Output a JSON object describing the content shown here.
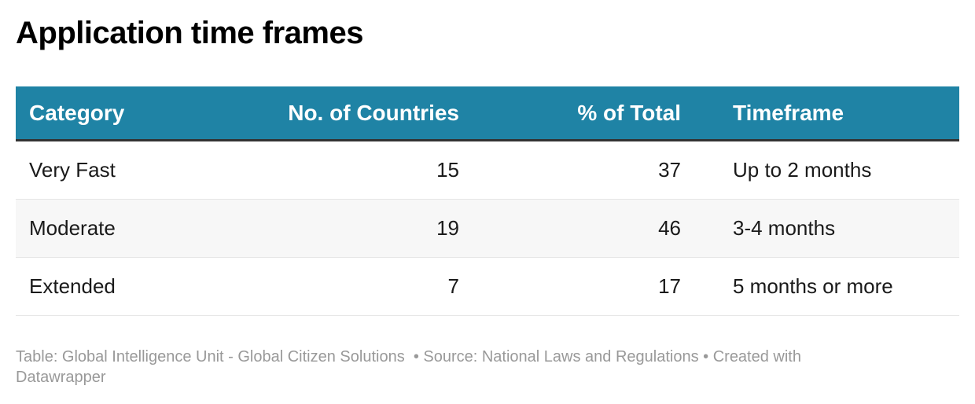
{
  "header": {
    "title": "Application time frames"
  },
  "table": {
    "columns": [
      "Category",
      "No. of Countries",
      "% of Total",
      "Timeframe"
    ],
    "rows": [
      [
        "Very Fast",
        15,
        37,
        "Up to 2 months"
      ],
      [
        "Moderate",
        19,
        46,
        "3-4 months"
      ],
      [
        "Extended",
        7,
        17,
        "5 months or more"
      ]
    ]
  },
  "footer": {
    "text": "Table: Global Intelligence Unit - Global Citizen Solutions  • Source: National Laws and Regulations • Created with Datawrapper"
  }
}
